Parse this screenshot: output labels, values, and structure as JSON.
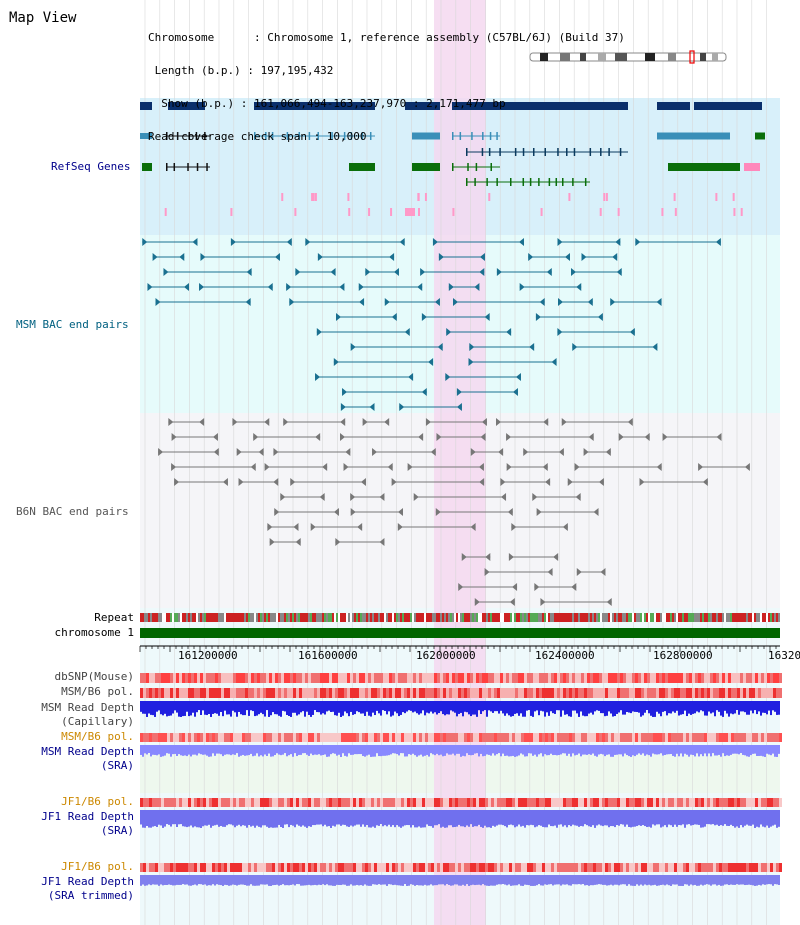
{
  "view_title": "Map View",
  "info": {
    "chromosome": "Chromosome      : Chromosome 1, reference assembly (C57BL/6J) (Build 37)",
    "length": " Length (b.p.) : 197,195,432",
    "show": "  Show (b.p.) : 161,066,494-163,237,970 : 2,171,477 bp",
    "coverage": "Read coverage check span : 10,000"
  },
  "tracks": {
    "refseq": "RefSeq Genes",
    "msm_bac": "MSM BAC end pairs",
    "b6n_bac": "B6N BAC end pairs",
    "repeat": "Repeat",
    "chromosome": "chromosome 1",
    "dbsnp": "dbSNP(Mouse)",
    "msm_b6_pol": "MSM/B6 pol.",
    "msm_read_cap": "MSM Read Depth\n(Capillary)",
    "msm_b6_pol2": "MSM/B6 pol.",
    "msm_read_sra": "MSM Read Depth\n(SRA)",
    "jf1_b6_pol": "JF1/B6 pol.",
    "jf1_read_sra": "JF1 Read Depth\n(SRA)",
    "jf1_b6_pol2": "JF1/B6 pol.",
    "jf1_read_trim": "JF1 Read Depth\n(SRA trimmed)"
  },
  "axis": {
    "ticks": [
      "161200000",
      "161600000",
      "162000000",
      "162400000",
      "162800000",
      "16320"
    ]
  },
  "colors": {
    "refseq_bg": "#d8f0fa",
    "bac_bg": "#e6fbfb",
    "b6n_bg": "#f5f5f8",
    "highlight": "#f5d8f0",
    "dark_gene": "#0a2f6b",
    "mid_gene": "#3a8fb8",
    "green_gene": "#0a6e0a",
    "chromosome": "#006600",
    "label_navy": "#00008b",
    "label_teal": "#006080",
    "label_gray": "#555555",
    "label_orange": "#cc8800"
  }
}
